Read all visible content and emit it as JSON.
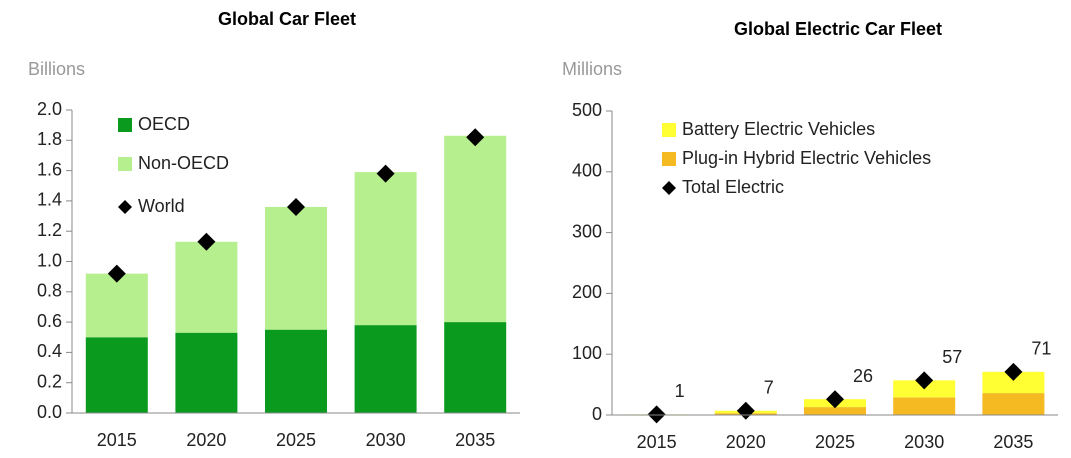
{
  "chart_data": [
    {
      "type": "bar",
      "stacked": true,
      "title": "Global Car Fleet",
      "y_label": "Billions",
      "categories": [
        "2015",
        "2020",
        "2025",
        "2030",
        "2035"
      ],
      "series": [
        {
          "name": "OECD",
          "color": "#0a9a1e",
          "kind": "bar",
          "values": [
            0.5,
            0.53,
            0.55,
            0.58,
            0.6
          ]
        },
        {
          "name": "Non-OECD",
          "color": "#b6ef8e",
          "kind": "bar",
          "values": [
            0.42,
            0.6,
            0.81,
            1.01,
            1.23
          ]
        },
        {
          "name": "World",
          "color": "#000000",
          "kind": "marker",
          "values": [
            0.92,
            1.13,
            1.36,
            1.58,
            1.82
          ]
        }
      ],
      "ylim": [
        0,
        2
      ],
      "yticks": [
        {
          "value": 0,
          "label": "0.0"
        },
        0.2,
        0.4,
        0.6,
        0.8,
        {
          "value": 1,
          "label": "1.0"
        },
        1.2,
        1.4,
        1.6,
        1.8,
        {
          "value": 2,
          "label": "2.0"
        }
      ],
      "legend": "upper left"
    },
    {
      "type": "bar",
      "stacked": true,
      "title": "Global Electric Car Fleet",
      "y_label": "Millions",
      "categories": [
        "2015",
        "2020",
        "2025",
        "2030",
        "2035"
      ],
      "series": [
        {
          "name": "Plug-in Hybrid Electric Vehicles",
          "color": "#f5b922",
          "kind": "bar",
          "values": [
            0.5,
            3,
            13,
            29,
            36
          ]
        },
        {
          "name": "Battery Electric Vehicles",
          "color": "#ffff33",
          "kind": "bar",
          "values": [
            0.5,
            4,
            13,
            28,
            35
          ]
        },
        {
          "name": "Total Electric",
          "color": "#000000",
          "kind": "marker",
          "show_values": true,
          "values": [
            1,
            7,
            26,
            57,
            71
          ]
        }
      ],
      "ylim": [
        0,
        500
      ],
      "yticks": [
        0,
        100,
        200,
        300,
        400,
        500
      ],
      "legend": "upper left",
      "legend_order": [
        1,
        0,
        2
      ]
    }
  ]
}
